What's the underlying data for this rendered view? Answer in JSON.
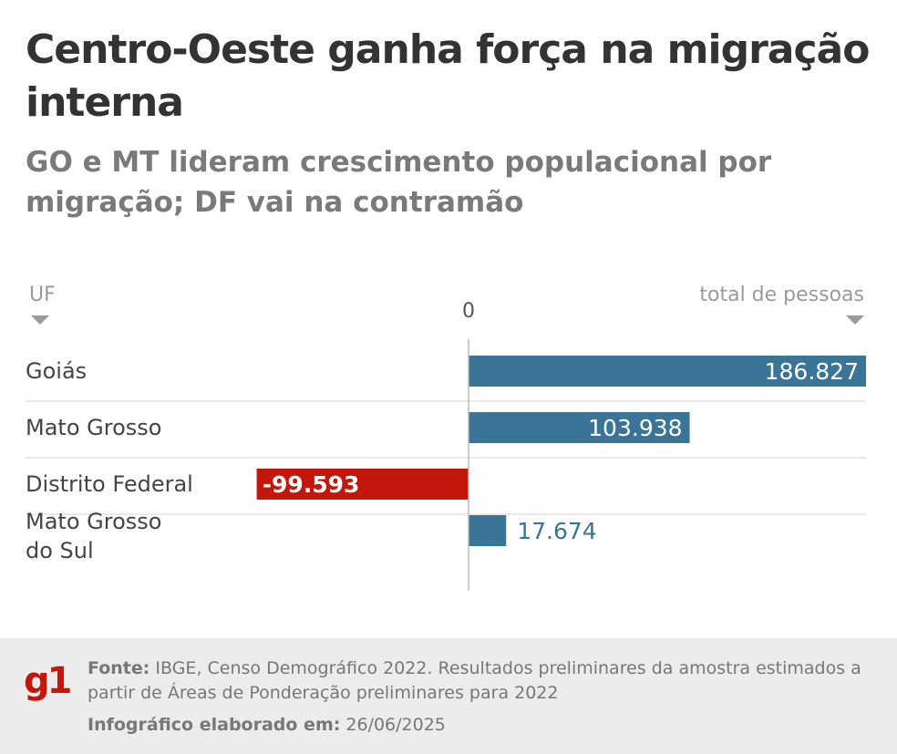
{
  "title": "Centro-Oeste ganha força na migração interna",
  "subtitle": "GO e MT lideram crescimento populacional por migração; DF vai na contramão",
  "colors": {
    "positive": "#3a7496",
    "negative": "#c4170c",
    "title": "#333333",
    "subtitle": "#7a7a7a"
  },
  "chart_data": {
    "type": "bar",
    "orientation": "horizontal",
    "row_header": "UF",
    "value_header": "total de pessoas",
    "zero_label": "0",
    "categories": [
      "Goiás",
      "Mato Grosso",
      "Distrito Federal",
      "Mato Grosso do Sul"
    ],
    "category_lines": [
      [
        "Goiás"
      ],
      [
        "Mato Grosso"
      ],
      [
        "Distrito Federal"
      ],
      [
        "Mato Grosso",
        "do Sul"
      ]
    ],
    "values": [
      186827,
      103938,
      -99593,
      17674
    ],
    "value_labels": [
      "186.827",
      "103.938",
      "-99.593",
      "17.674"
    ],
    "xlim": [
      -200000,
      186827
    ],
    "grid": false
  },
  "footer": {
    "logo": "g1",
    "source_label": "Fonte:",
    "source_text": "IBGE, Censo Demográfico 2022. Resultados preliminares da amostra estimados a partir de Áreas de Ponderação preliminares para 2022",
    "date_label": "Infográfico elaborado em:",
    "date_value": "26/06/2025"
  }
}
